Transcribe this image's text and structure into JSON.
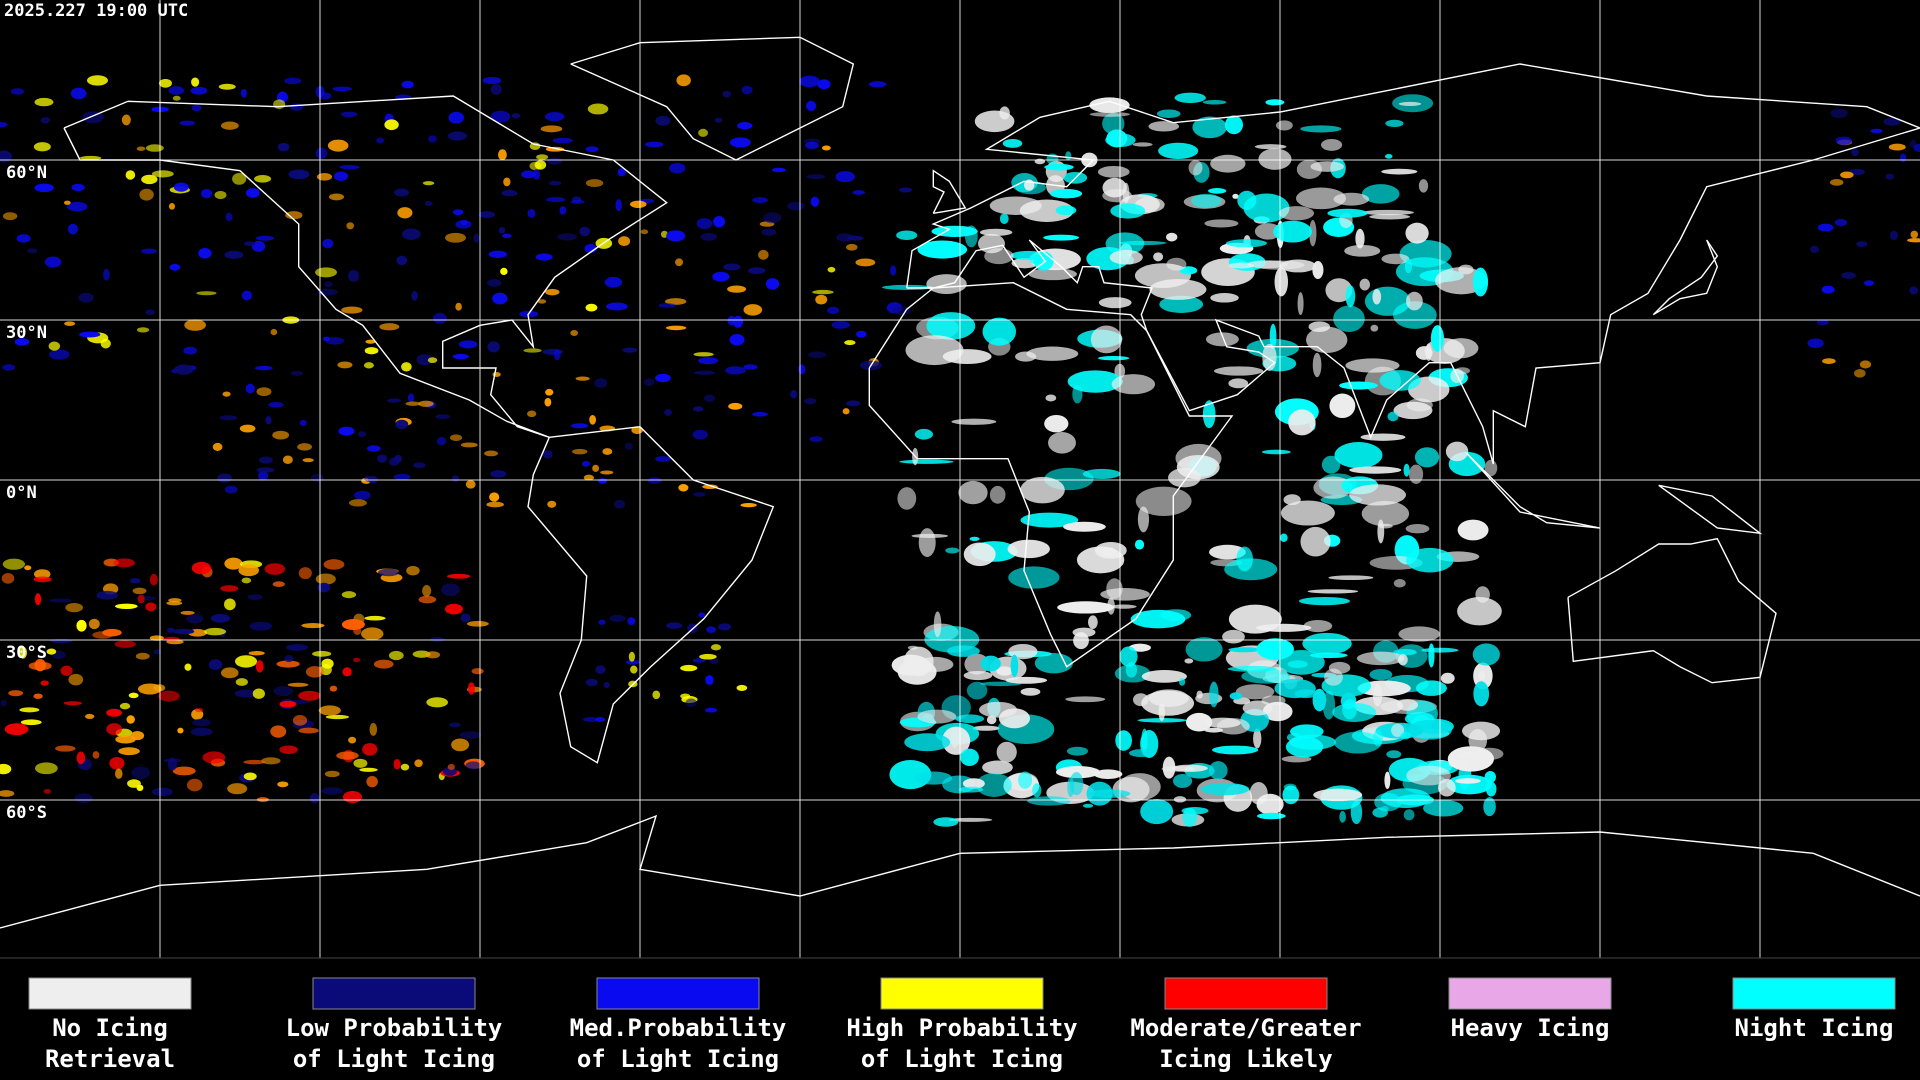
{
  "timestamp": "2025.227 19:00 UTC",
  "latitude_labels": [
    "60°N",
    "30°N",
    "0°N",
    "30°S",
    "60°S"
  ],
  "legend": [
    {
      "label": [
        "No Icing",
        "Retrieval"
      ],
      "color": "#eeeeee"
    },
    {
      "label": [
        "Low Probability",
        "of Light Icing"
      ],
      "color": "#0a0a78"
    },
    {
      "label": [
        "Med.Probability",
        "of Light Icing"
      ],
      "color": "#0a0af0"
    },
    {
      "label": [
        "High Probability",
        "of Light Icing"
      ],
      "color": "#ffff00"
    },
    {
      "label": [
        "Moderate/Greater",
        "Icing Likely"
      ],
      "color": "#ff0000"
    },
    {
      "label": [
        "Heavy Icing"
      ],
      "color": "#e8a8e8"
    },
    {
      "label": [
        "Night Icing"
      ],
      "color": "#00ffff"
    }
  ]
}
